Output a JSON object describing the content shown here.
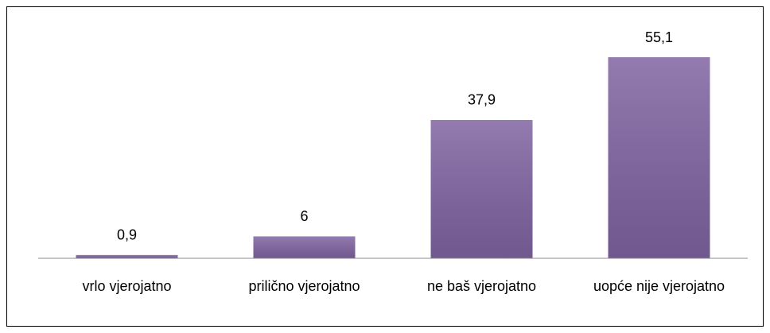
{
  "chart_data": {
    "type": "bar",
    "categories": [
      "vrlo vjerojatno",
      "prilično vjerojatno",
      "ne baš vjerojatno",
      "uopće nije vjerojatno"
    ],
    "values": [
      0.9,
      6,
      37.9,
      55.1
    ],
    "value_labels": [
      "0,9",
      "6",
      "37,9",
      "55,1"
    ],
    "color": "#8064a2"
  }
}
